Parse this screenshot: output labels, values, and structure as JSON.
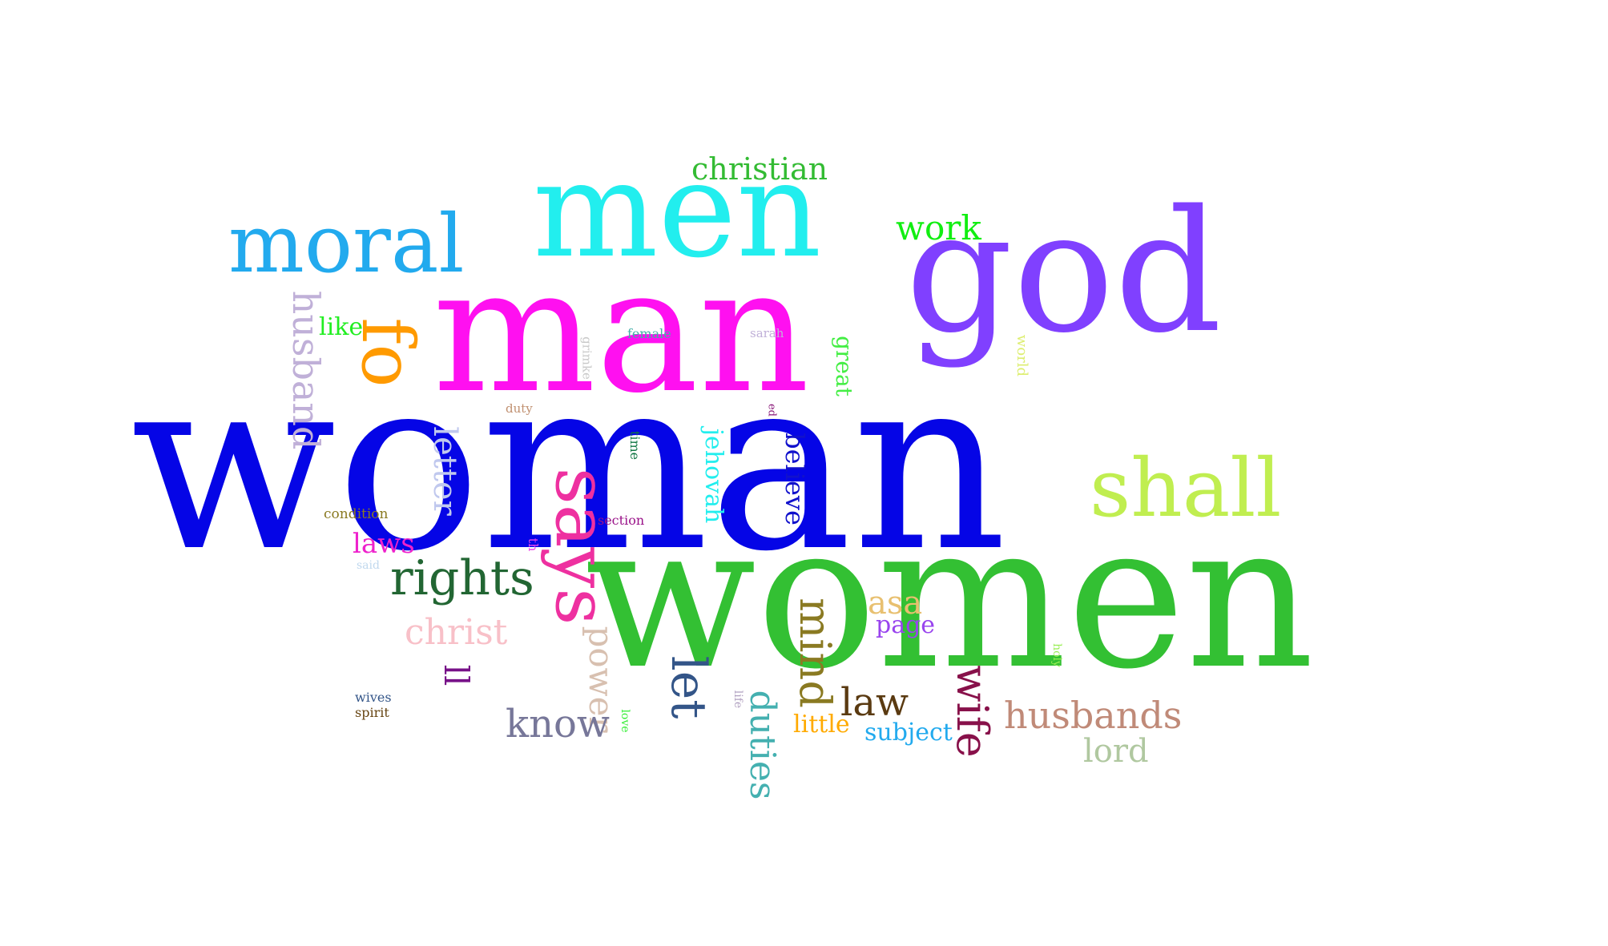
{
  "words": [
    {
      "text": "woman",
      "color": "#0505e6"
    },
    {
      "text": "women",
      "color": "#33c033"
    },
    {
      "text": "man",
      "color": "#ff10f0"
    },
    {
      "text": "men",
      "color": "#22eeee"
    },
    {
      "text": "god",
      "color": "#8040ff"
    },
    {
      "text": "moral",
      "color": "#22aaee"
    },
    {
      "text": "shall",
      "color": "#c0ee50"
    },
    {
      "text": "says",
      "color": "#ee30a0"
    },
    {
      "text": "fo",
      "color": "#ff9a00"
    },
    {
      "text": "rights",
      "color": "#226633"
    },
    {
      "text": "christian",
      "color": "#33bb33"
    },
    {
      "text": "work",
      "color": "#11ee11"
    },
    {
      "text": "husband",
      "color": "#c0b0d8"
    },
    {
      "text": "like",
      "color": "#22ee22"
    },
    {
      "text": "letter",
      "color": "#c0c8ee"
    },
    {
      "text": "jehovah",
      "color": "#22eeee"
    },
    {
      "text": "believe",
      "color": "#1111cc"
    },
    {
      "text": "great",
      "color": "#44ee44"
    },
    {
      "text": "world",
      "color": "#ddee70"
    },
    {
      "text": "grimke",
      "color": "#c8c8c8"
    },
    {
      "text": "female",
      "color": "#44b0a8"
    },
    {
      "text": "sarah",
      "color": "#c0b0d8"
    },
    {
      "text": "duty",
      "color": "#c09070"
    },
    {
      "text": "ed",
      "color": "#8a1a7a"
    },
    {
      "text": "time",
      "color": "#117744"
    },
    {
      "text": "condition",
      "color": "#8a7a22"
    },
    {
      "text": "section",
      "color": "#991188"
    },
    {
      "text": "th",
      "color": "#ee44ee"
    },
    {
      "text": "laws",
      "color": "#ee22cc"
    },
    {
      "text": "said",
      "color": "#c0d8ee"
    },
    {
      "text": "christ",
      "color": "#f8c0c8"
    },
    {
      "text": "asa",
      "color": "#e8c070"
    },
    {
      "text": "page",
      "color": "#9944ee"
    },
    {
      "text": "mind",
      "color": "#8a7a22"
    },
    {
      "text": "power",
      "color": "#d8c0b0"
    },
    {
      "text": "let",
      "color": "#335588"
    },
    {
      "text": "ll",
      "color": "#771188"
    },
    {
      "text": "holy",
      "color": "#99ee55"
    },
    {
      "text": "life",
      "color": "#b0a0c0"
    },
    {
      "text": "love",
      "color": "#33ee33"
    },
    {
      "text": "duties",
      "color": "#44b0b0"
    },
    {
      "text": "law",
      "color": "#5a3a11"
    },
    {
      "text": "wife",
      "color": "#88114a"
    },
    {
      "text": "husbands",
      "color": "#c08a78"
    },
    {
      "text": "lord",
      "color": "#b0c8a0"
    },
    {
      "text": "little",
      "color": "#ffaa00"
    },
    {
      "text": "subject",
      "color": "#22aaee"
    },
    {
      "text": "know",
      "color": "#777799"
    },
    {
      "text": "wives",
      "color": "#335588"
    },
    {
      "text": "spirit",
      "color": "#664411"
    }
  ]
}
